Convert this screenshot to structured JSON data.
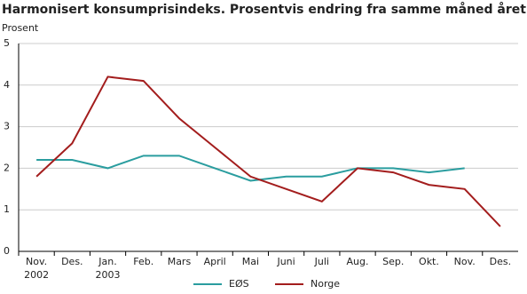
{
  "chart_data": {
    "type": "line",
    "title": "Harmonisert konsumprisindeks. Prosentvis endring fra samme måned året før",
    "y_label": "Prosent",
    "categories": [
      "Nov.\n2002",
      "Des.",
      "Jan.\n2003",
      "Feb.",
      "Mars",
      "April",
      "Mai",
      "Juni",
      "Juli",
      "Aug.",
      "Sep.",
      "Okt.",
      "Nov.",
      "Des."
    ],
    "series": [
      {
        "name": "EØS",
        "color": "#2a9d9f",
        "values": [
          2.2,
          2.2,
          2.0,
          2.3,
          2.3,
          2.0,
          1.7,
          1.8,
          1.8,
          2.0,
          2.0,
          1.9,
          2.0,
          null
        ]
      },
      {
        "name": "Norge",
        "color": "#a31d1d",
        "values": [
          1.8,
          2.6,
          4.2,
          4.1,
          3.2,
          2.5,
          1.8,
          1.5,
          1.2,
          2.0,
          1.9,
          1.6,
          1.5,
          0.6
        ]
      }
    ],
    "ylim": [
      0,
      5
    ],
    "yticks": [
      0,
      1,
      2,
      3,
      4,
      5
    ],
    "grid": true,
    "legend": "bottom"
  }
}
